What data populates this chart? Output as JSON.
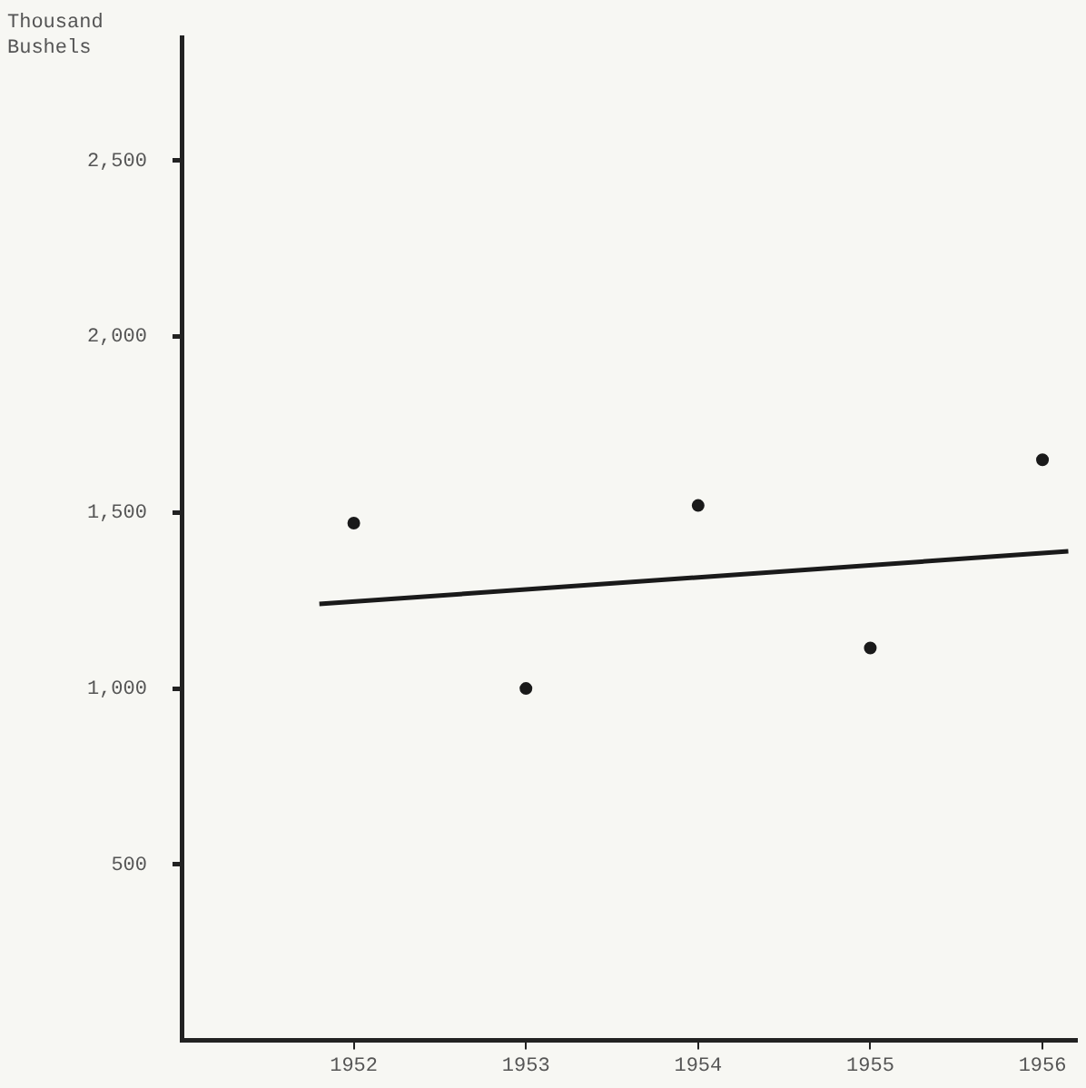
{
  "chart_data": {
    "type": "scatter",
    "ylabel": "Thousand Bushels",
    "xlim": [
      1951,
      1956.2
    ],
    "xticks": [
      1952,
      1953,
      1954,
      1955,
      1956
    ],
    "ylim": [
      0,
      2850
    ],
    "yticks": [
      {
        "value": 500,
        "label": "500"
      },
      {
        "value": 1000,
        "label": "1,000"
      },
      {
        "value": 1500,
        "label": "1,500"
      },
      {
        "value": 2000,
        "label": "2,000"
      },
      {
        "value": 2500,
        "label": "2,500"
      }
    ],
    "series": [
      {
        "type": "scatter",
        "marker": "circle",
        "color": "#1a1a1a",
        "x": [
          1952,
          1953,
          1954,
          1955,
          1956
        ],
        "values": [
          1470,
          1000,
          1520,
          1115,
          1650
        ]
      },
      {
        "type": "line",
        "color": "#1a1a1a",
        "x": [
          1951.8,
          1956.15
        ],
        "values": [
          1240,
          1390
        ]
      }
    ]
  }
}
